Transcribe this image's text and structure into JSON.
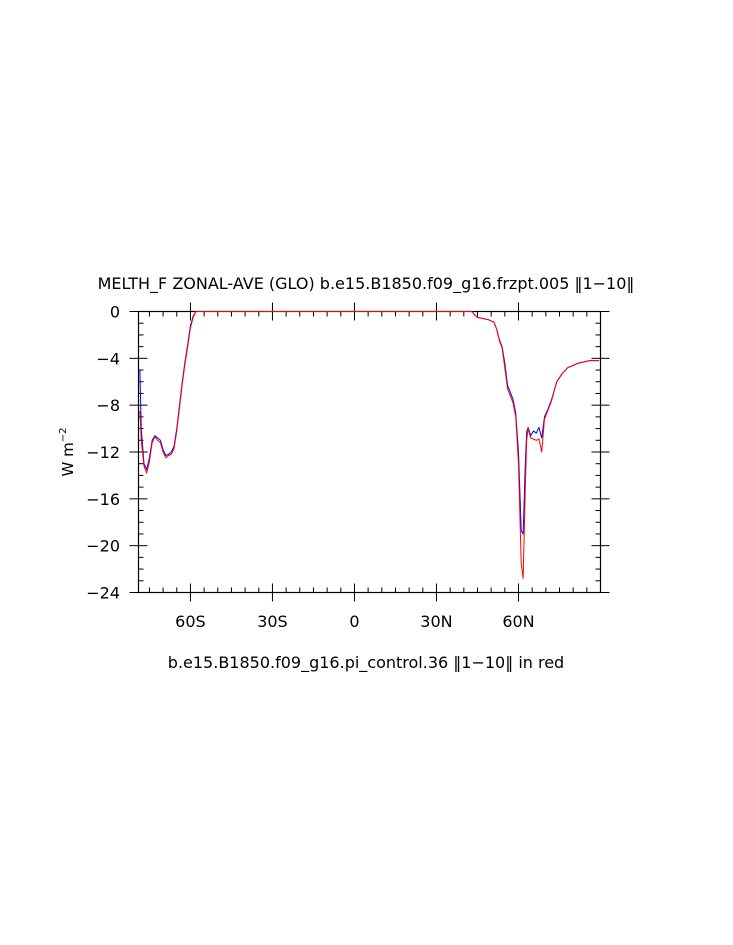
{
  "chart_data": {
    "type": "line",
    "title": "MELTH_F ZONAL-AVE (GLO) b.e15.B1850.f09_g16.frzpt.005 ‖1−10‖",
    "subtitle": "b.e15.B1850.f09_g16.pi_control.36 ‖1−10‖ in red",
    "ylabel": "W m",
    "ylabel_exp": "−2",
    "xlabel": "",
    "xlim": [
      -79,
      90
    ],
    "ylim": [
      -24,
      0
    ],
    "grid": false,
    "x_ticks": [
      {
        "value": -60,
        "label": "60S"
      },
      {
        "value": -30,
        "label": "30S"
      },
      {
        "value": 0,
        "label": "0"
      },
      {
        "value": 30,
        "label": "30N"
      },
      {
        "value": 60,
        "label": "60N"
      }
    ],
    "y_ticks": [
      {
        "value": 0,
        "label": "0"
      },
      {
        "value": -4,
        "label": "−4"
      },
      {
        "value": -8,
        "label": "−8"
      },
      {
        "value": -12,
        "label": "−12"
      },
      {
        "value": -16,
        "label": "−16"
      },
      {
        "value": -20,
        "label": "−20"
      },
      {
        "value": -24,
        "label": "−24"
      }
    ],
    "series": [
      {
        "color": "#0000ff",
        "points": [
          [
            -78.5,
            -5.0
          ],
          [
            -78,
            -10.0
          ],
          [
            -77,
            -13.0
          ],
          [
            -76,
            -13.5
          ],
          [
            -75,
            -12.5
          ],
          [
            -74,
            -11.0
          ],
          [
            -73,
            -10.6
          ],
          [
            -72,
            -10.8
          ],
          [
            -71,
            -11.0
          ],
          [
            -70,
            -11.8
          ],
          [
            -69,
            -12.3
          ],
          [
            -68,
            -12.2
          ],
          [
            -67,
            -12.0
          ],
          [
            -66,
            -11.5
          ],
          [
            -65,
            -10.0
          ],
          [
            -64,
            -8.0
          ],
          [
            -63,
            -6.0
          ],
          [
            -62,
            -4.3
          ],
          [
            -61,
            -2.8
          ],
          [
            -60,
            -1.2
          ],
          [
            -59,
            -0.4
          ],
          [
            -58,
            0.0
          ],
          [
            -40,
            0.0
          ],
          [
            -20,
            0.0
          ],
          [
            0,
            0.0
          ],
          [
            20,
            0.0
          ],
          [
            40,
            0.0
          ],
          [
            43,
            0.0
          ],
          [
            44,
            -0.3
          ],
          [
            45,
            -0.5
          ],
          [
            47,
            -0.6
          ],
          [
            49,
            -0.7
          ],
          [
            51,
            -0.9
          ],
          [
            52,
            -1.5
          ],
          [
            53,
            -2.4
          ],
          [
            54,
            -3.0
          ],
          [
            55,
            -4.4
          ],
          [
            56,
            -6.3
          ],
          [
            57,
            -6.9
          ],
          [
            58,
            -7.5
          ],
          [
            59,
            -8.7
          ],
          [
            60,
            -12.0
          ],
          [
            61,
            -18.7
          ],
          [
            61.7,
            -19.0
          ],
          [
            62.5,
            -13.0
          ],
          [
            63,
            -10.3
          ],
          [
            63.5,
            -9.9
          ],
          [
            64.5,
            -10.6
          ],
          [
            65.5,
            -10.2
          ],
          [
            66.5,
            -10.4
          ],
          [
            67.5,
            -9.9
          ],
          [
            68.5,
            -10.8
          ],
          [
            69.5,
            -9.0
          ],
          [
            70.5,
            -8.5
          ],
          [
            72,
            -7.6
          ],
          [
            74,
            -6.0
          ],
          [
            76,
            -5.3
          ],
          [
            78,
            -4.8
          ],
          [
            80,
            -4.6
          ],
          [
            82,
            -4.4
          ],
          [
            84,
            -4.3
          ],
          [
            86,
            -4.2
          ],
          [
            88,
            -4.2
          ],
          [
            89.5,
            -4.2
          ]
        ]
      },
      {
        "color": "#ff0000",
        "points": [
          [
            -78.5,
            -8.5
          ],
          [
            -78,
            -11.0
          ],
          [
            -77,
            -13.2
          ],
          [
            -76,
            -13.8
          ],
          [
            -75,
            -12.8
          ],
          [
            -74,
            -11.2
          ],
          [
            -73,
            -10.7
          ],
          [
            -72,
            -11.0
          ],
          [
            -71,
            -11.2
          ],
          [
            -70,
            -12.0
          ],
          [
            -69,
            -12.5
          ],
          [
            -68,
            -12.3
          ],
          [
            -67,
            -12.2
          ],
          [
            -66,
            -11.7
          ],
          [
            -65,
            -10.2
          ],
          [
            -64,
            -8.2
          ],
          [
            -63,
            -6.2
          ],
          [
            -62,
            -4.5
          ],
          [
            -61,
            -3.0
          ],
          [
            -60,
            -1.4
          ],
          [
            -59,
            -0.5
          ],
          [
            -58,
            0.0
          ],
          [
            -40,
            0.0
          ],
          [
            -20,
            0.0
          ],
          [
            0,
            0.0
          ],
          [
            20,
            0.0
          ],
          [
            40,
            0.0
          ],
          [
            43,
            0.0
          ],
          [
            44,
            -0.3
          ],
          [
            45,
            -0.5
          ],
          [
            47,
            -0.6
          ],
          [
            49,
            -0.7
          ],
          [
            51,
            -0.9
          ],
          [
            52,
            -1.5
          ],
          [
            53,
            -2.5
          ],
          [
            54,
            -3.1
          ],
          [
            55,
            -4.8
          ],
          [
            56,
            -6.6
          ],
          [
            57,
            -7.2
          ],
          [
            58,
            -7.8
          ],
          [
            59,
            -9.0
          ],
          [
            60,
            -13.0
          ],
          [
            61,
            -21.5
          ],
          [
            61.7,
            -22.8
          ],
          [
            62.5,
            -15.0
          ],
          [
            63,
            -11.0
          ],
          [
            63.5,
            -10.0
          ],
          [
            64.5,
            -10.8
          ],
          [
            65.5,
            -10.9
          ],
          [
            66.5,
            -11.0
          ],
          [
            67.5,
            -10.9
          ],
          [
            68.5,
            -12.0
          ],
          [
            69.5,
            -9.2
          ],
          [
            70.5,
            -8.6
          ],
          [
            72,
            -7.7
          ],
          [
            74,
            -6.0
          ],
          [
            76,
            -5.3
          ],
          [
            78,
            -4.8
          ],
          [
            80,
            -4.6
          ],
          [
            82,
            -4.4
          ],
          [
            84,
            -4.3
          ],
          [
            86,
            -4.2
          ],
          [
            88,
            -4.2
          ],
          [
            89.5,
            -4.2
          ]
        ]
      }
    ]
  }
}
